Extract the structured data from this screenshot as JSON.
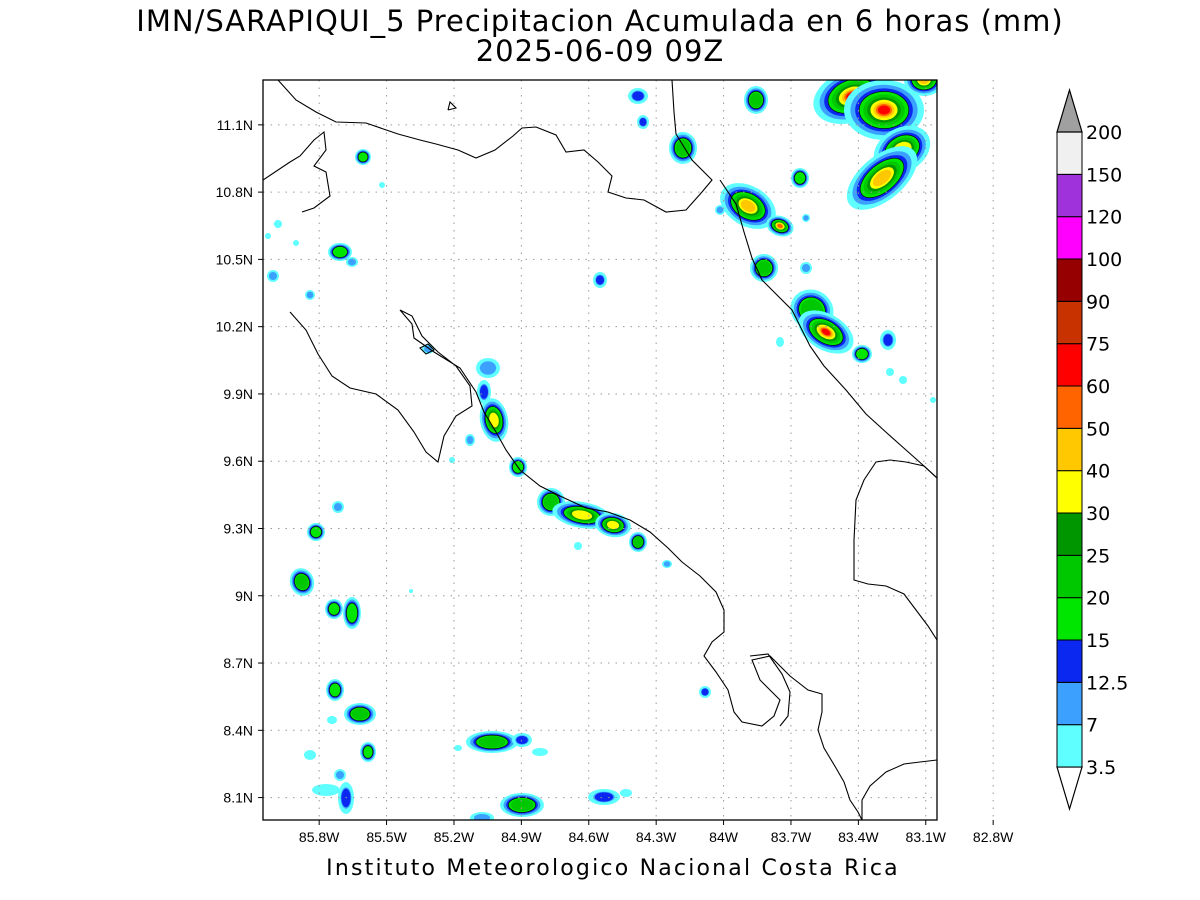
{
  "header": {
    "title_line_1": "IMN/SARAPIQUI_5 Precipitacion Acumulada en 6 horas (mm)",
    "title_line_2": "2025-06-09 09Z"
  },
  "footer": {
    "credit": "Instituto Meteorologico Nacional Costa Rica"
  },
  "map": {
    "projection": "lat-lon",
    "lon_range": [
      -86.05,
      -83.05
    ],
    "lat_range": [
      8.0,
      11.3
    ],
    "grid": "dotted",
    "x_tick_labels": [
      "85.8W",
      "85.5W",
      "85.2W",
      "84.9W",
      "84.6W",
      "84.3W",
      "84W",
      "83.7W",
      "83.4W",
      "83.1W",
      "82.8W"
    ],
    "y_tick_labels": [
      "11.1N",
      "10.8N",
      "10.5N",
      "10.2N",
      "9.9N",
      "9.6N",
      "9.3N",
      "9N",
      "8.7N",
      "8.4N",
      "8.1N"
    ]
  },
  "colorbar": {
    "levels": [
      "3.5",
      "7",
      "12.5",
      "15",
      "20",
      "25",
      "30",
      "40",
      "50",
      "60",
      "75",
      "90",
      "100",
      "120",
      "150",
      "200"
    ],
    "colors": [
      "#5fffff",
      "#3ca0ff",
      "#0a28f0",
      "#00e600",
      "#00c800",
      "#009600",
      "#ffff00",
      "#ffc800",
      "#ff6400",
      "#ff0000",
      "#c83200",
      "#960000",
      "#ff00ff",
      "#a032dc",
      "#f0f0f0",
      "#a0a0a0"
    ]
  },
  "precip_palette": {
    "c1": "#5fffff",
    "c2": "#3ca0ff",
    "c3": "#0a28f0",
    "c4": "#00e600",
    "c5": "#00c800",
    "c6": "#009600",
    "c7": "#ffff00",
    "c8": "#ffc800",
    "c9": "#ff6400",
    "c10": "#ff0000",
    "c11": "#c83200"
  }
}
